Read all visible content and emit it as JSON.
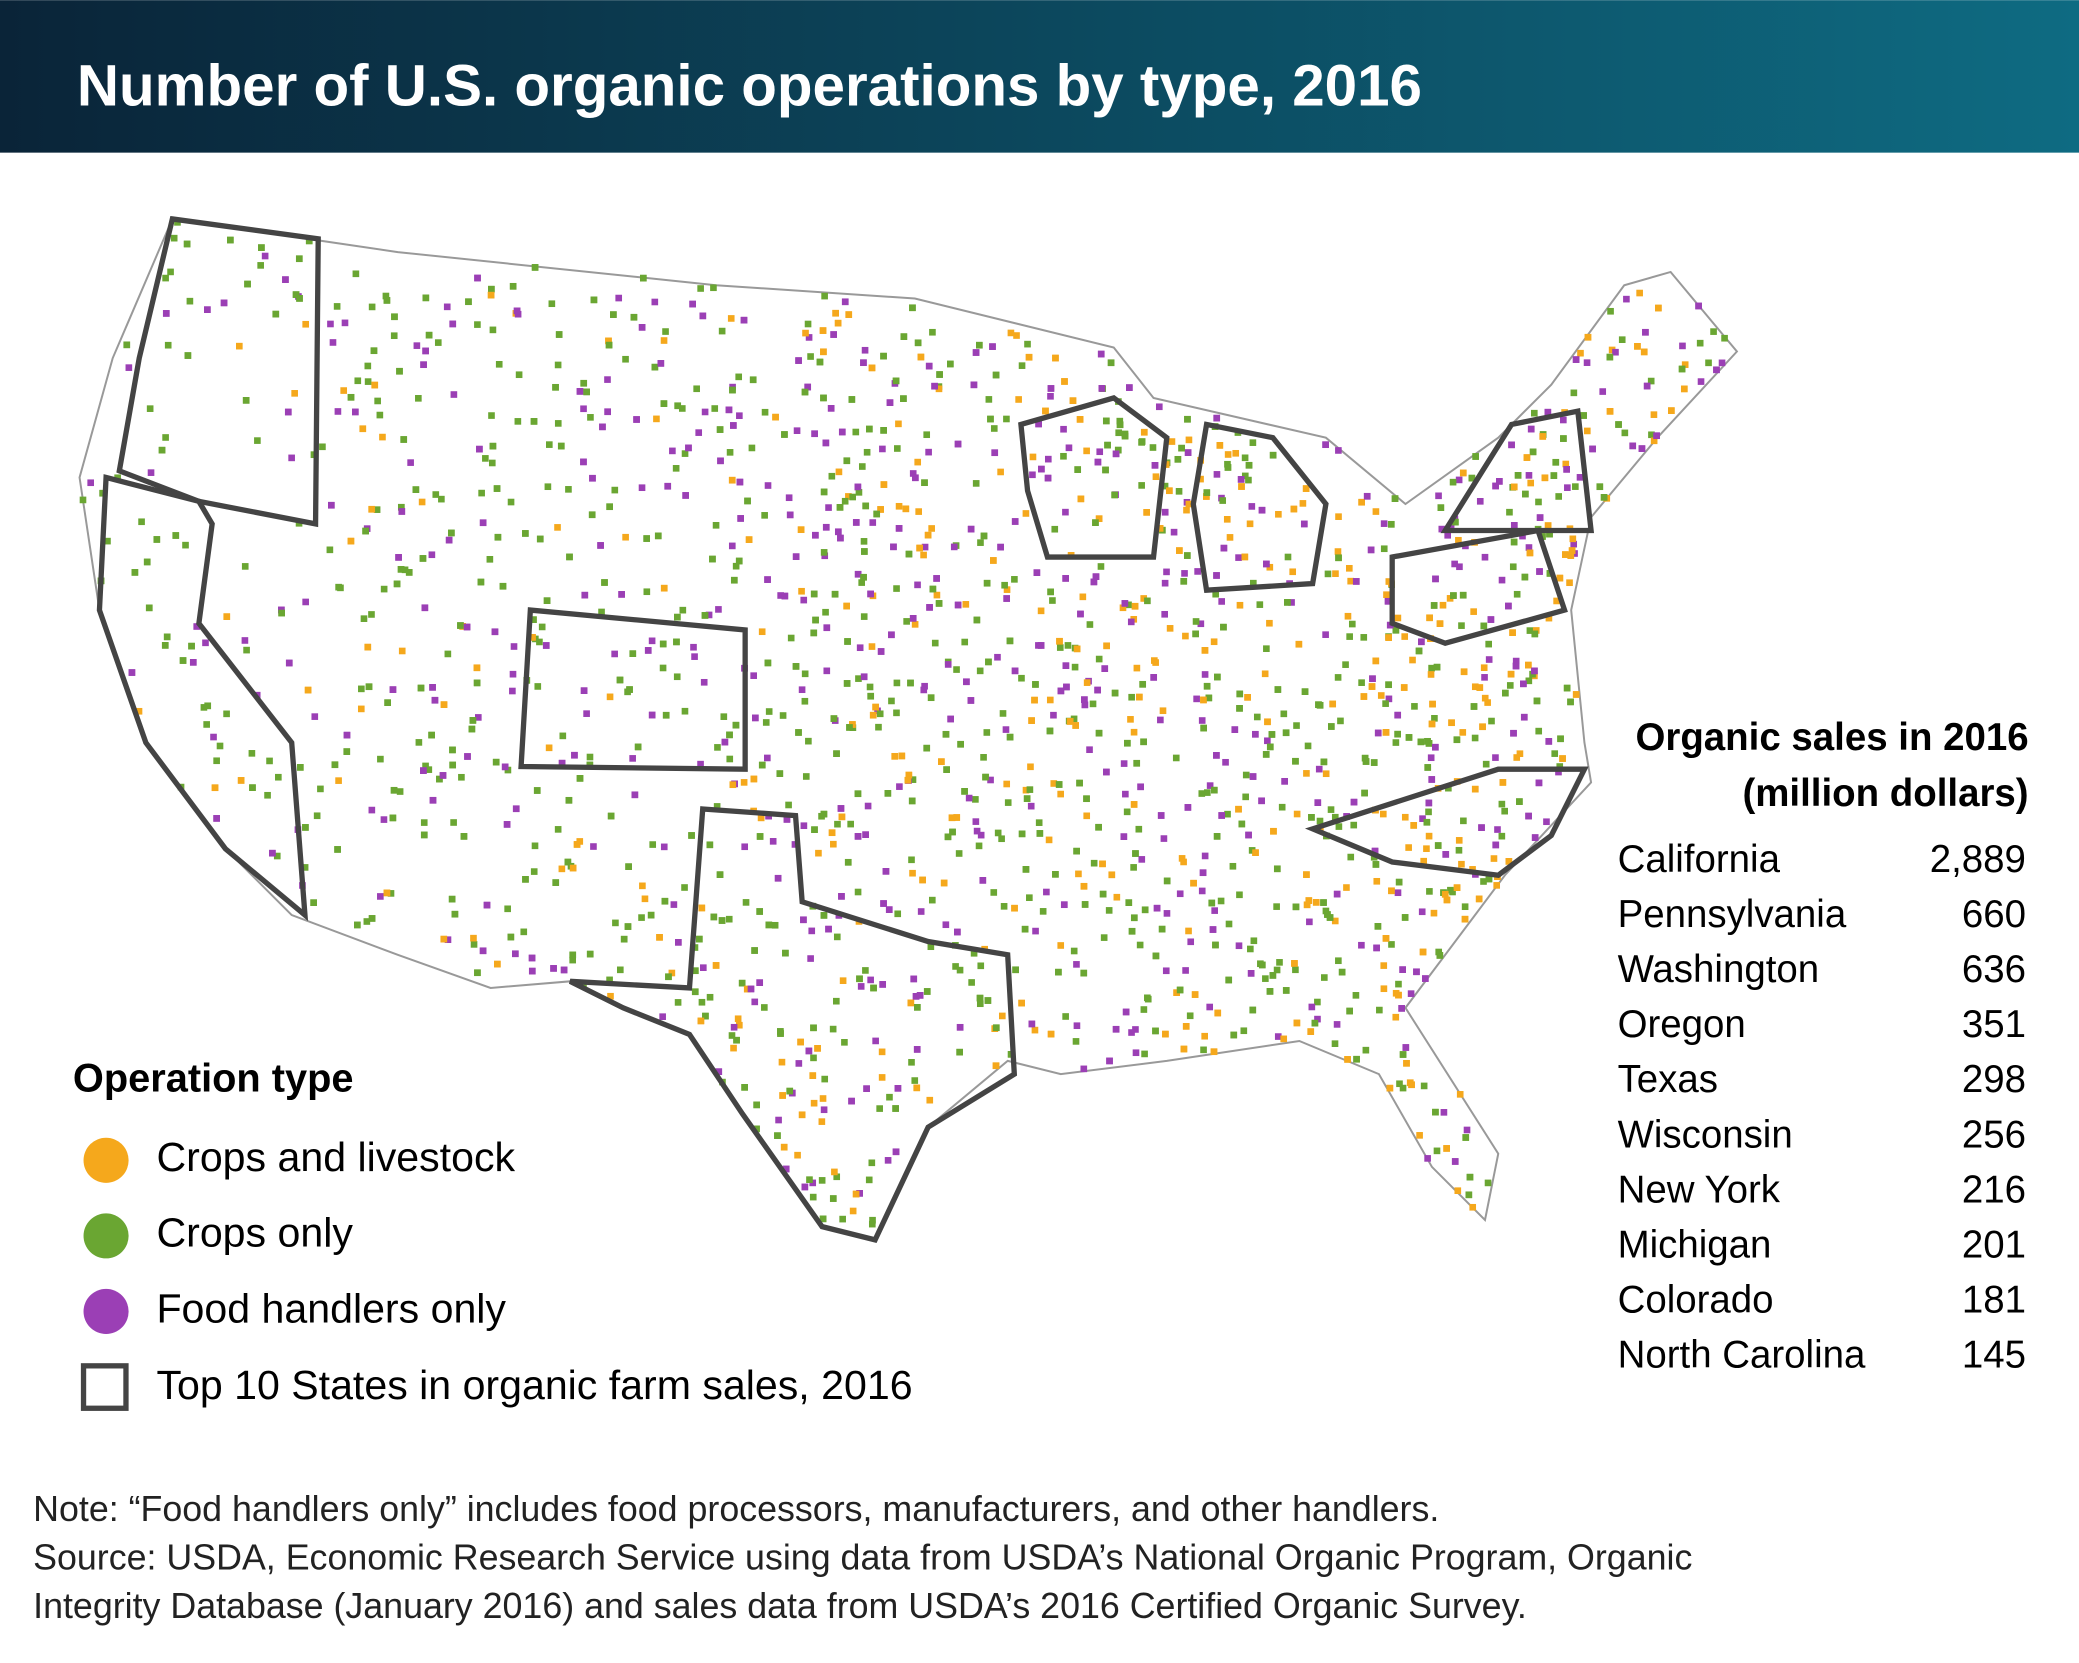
{
  "header": {
    "title": "Number of U.S. organic operations by type, 2016"
  },
  "legend": {
    "title": "Operation type",
    "items": [
      {
        "label": "Crops and livestock",
        "color": "#f5a81c"
      },
      {
        "label": "Crops only",
        "color": "#6aa632"
      },
      {
        "label": "Food handlers only",
        "color": "#9b3fb5"
      }
    ],
    "top_states_label": "Top 10 States in organic farm sales, 2016"
  },
  "sales": {
    "title_lines": [
      "Organic sales in 2016",
      "(million dollars)"
    ],
    "rows": [
      [
        "California",
        "2,889"
      ],
      [
        "Pennsylvania",
        "660"
      ],
      [
        "Washington",
        "636"
      ],
      [
        "Oregon",
        "351"
      ],
      [
        "Texas",
        "298"
      ],
      [
        "Wisconsin",
        "256"
      ],
      [
        "New York",
        "216"
      ],
      [
        "Michigan",
        "201"
      ],
      [
        "Colorado",
        "181"
      ],
      [
        "North Carolina",
        "145"
      ]
    ]
  },
  "notes": [
    "Note: “Food handlers only” includes food processors, manufacturers, and other handlers.",
    "Source: USDA, Economic Research Service using data from USDA’s National Organic Program, Organic",
    "Integrity Database (January 2016) and sales data from USDA’s 2016 Certified Organic Survey."
  ]
}
